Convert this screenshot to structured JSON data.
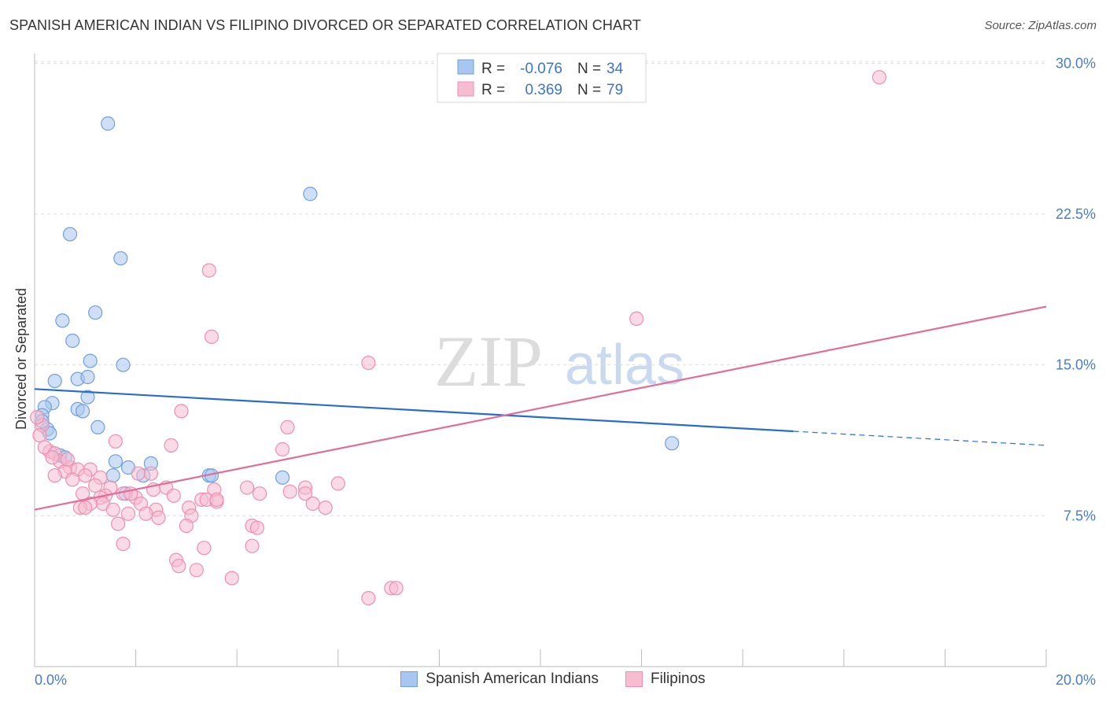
{
  "title": "SPANISH AMERICAN INDIAN VS FILIPINO DIVORCED OR SEPARATED CORRELATION CHART",
  "source": "Source: ZipAtlas.com",
  "watermark": {
    "zip": "ZIP",
    "atlas": "atlas"
  },
  "legend": {
    "rows": [
      {
        "r_label": "R =",
        "r_value": "-0.076",
        "n_label": "N =",
        "n_value": "34"
      },
      {
        "r_label": "R =",
        "r_value": "0.369",
        "n_label": "N =",
        "n_value": "79"
      }
    ]
  },
  "bottom_legend": [
    "Spanish American Indians",
    "Filipinos"
  ],
  "colors": {
    "blue_fill": "#a8c6ef",
    "blue_stroke": "#6f9fe0",
    "blue_line": "#2a6ccc",
    "pink_fill": "#f6bcd0",
    "pink_stroke": "#ee8fb0",
    "pink_line": "#e06e98",
    "tick_text": "#4a7cc7",
    "grid": "#dddddd"
  },
  "chart_data": {
    "type": "scatter",
    "title": "SPANISH AMERICAN INDIAN VS FILIPINO DIVORCED OR SEPARATED CORRELATION CHART",
    "xlabel": "",
    "ylabel": "Divorced or Separated",
    "xlim": [
      0,
      20
    ],
    "ylim": [
      0,
      31
    ],
    "x_tick_labels": [
      "0.0%",
      "20.0%"
    ],
    "y_ticks": [
      7.5,
      15.0,
      22.5,
      30.0
    ],
    "y_tick_labels": [
      "7.5%",
      "15.0%",
      "22.5%",
      "30.0%"
    ],
    "grid": "horizontal dashed",
    "legend_position": "top-center",
    "series": [
      {
        "name": "Spanish American Indians",
        "color": "blue",
        "r": -0.076,
        "n": 34,
        "trend": {
          "x": [
            0,
            15
          ],
          "y": [
            13.8,
            11.7
          ],
          "dashed_to": [
            20,
            11.0
          ]
        },
        "points": [
          [
            1.45,
            27.0
          ],
          [
            5.45,
            23.5
          ],
          [
            0.7,
            21.5
          ],
          [
            1.7,
            20.3
          ],
          [
            1.2,
            17.6
          ],
          [
            0.55,
            17.2
          ],
          [
            0.75,
            16.2
          ],
          [
            1.1,
            15.2
          ],
          [
            1.75,
            15.0
          ],
          [
            0.85,
            14.3
          ],
          [
            1.05,
            14.4
          ],
          [
            0.4,
            14.2
          ],
          [
            1.05,
            13.4
          ],
          [
            0.35,
            13.1
          ],
          [
            0.2,
            12.9
          ],
          [
            0.85,
            12.8
          ],
          [
            0.95,
            12.7
          ],
          [
            0.15,
            12.5
          ],
          [
            1.25,
            11.9
          ],
          [
            0.25,
            11.8
          ],
          [
            0.3,
            11.6
          ],
          [
            0.5,
            10.5
          ],
          [
            0.6,
            10.4
          ],
          [
            1.6,
            10.2
          ],
          [
            2.3,
            10.1
          ],
          [
            1.85,
            9.9
          ],
          [
            1.55,
            9.5
          ],
          [
            2.15,
            9.5
          ],
          [
            3.45,
            9.5
          ],
          [
            3.5,
            9.5
          ],
          [
            4.9,
            9.4
          ],
          [
            1.8,
            8.6
          ],
          [
            12.6,
            11.1
          ],
          [
            0.15,
            12.2
          ]
        ]
      },
      {
        "name": "Filipinos",
        "color": "pink",
        "r": 0.369,
        "n": 79,
        "trend": {
          "x": [
            0,
            20
          ],
          "y": [
            7.8,
            17.9
          ]
        },
        "points": [
          [
            16.7,
            29.3
          ],
          [
            3.45,
            19.7
          ],
          [
            11.9,
            17.3
          ],
          [
            3.5,
            16.4
          ],
          [
            6.6,
            15.1
          ],
          [
            2.9,
            12.7
          ],
          [
            5.0,
            11.9
          ],
          [
            0.15,
            12.0
          ],
          [
            0.05,
            12.4
          ],
          [
            1.6,
            11.2
          ],
          [
            2.7,
            11.0
          ],
          [
            4.9,
            10.8
          ],
          [
            0.3,
            10.7
          ],
          [
            0.2,
            10.9
          ],
          [
            0.4,
            10.6
          ],
          [
            0.5,
            10.2
          ],
          [
            0.35,
            10.4
          ],
          [
            0.7,
            9.9
          ],
          [
            0.85,
            9.8
          ],
          [
            1.1,
            9.8
          ],
          [
            0.6,
            9.7
          ],
          [
            0.4,
            9.5
          ],
          [
            0.75,
            9.3
          ],
          [
            1.0,
            9.5
          ],
          [
            1.3,
            9.4
          ],
          [
            2.05,
            9.6
          ],
          [
            2.3,
            9.6
          ],
          [
            6.0,
            9.1
          ],
          [
            1.2,
            9.0
          ],
          [
            1.5,
            8.9
          ],
          [
            2.6,
            8.9
          ],
          [
            3.55,
            8.8
          ],
          [
            4.2,
            8.9
          ],
          [
            5.35,
            8.9
          ],
          [
            5.05,
            8.7
          ],
          [
            0.95,
            8.6
          ],
          [
            1.75,
            8.6
          ],
          [
            2.75,
            8.5
          ],
          [
            4.45,
            8.6
          ],
          [
            5.35,
            8.6
          ],
          [
            1.4,
            8.5
          ],
          [
            1.3,
            8.4
          ],
          [
            2.0,
            8.4
          ],
          [
            1.35,
            8.1
          ],
          [
            3.3,
            8.3
          ],
          [
            3.4,
            8.3
          ],
          [
            3.6,
            8.2
          ],
          [
            1.1,
            8.1
          ],
          [
            2.1,
            8.1
          ],
          [
            5.5,
            8.1
          ],
          [
            0.9,
            7.9
          ],
          [
            2.4,
            7.8
          ],
          [
            3.05,
            7.9
          ],
          [
            5.75,
            7.9
          ],
          [
            1.55,
            7.8
          ],
          [
            2.2,
            7.6
          ],
          [
            1.85,
            7.6
          ],
          [
            2.45,
            7.4
          ],
          [
            3.1,
            7.5
          ],
          [
            1.65,
            7.1
          ],
          [
            3.0,
            7.0
          ],
          [
            4.3,
            7.0
          ],
          [
            4.4,
            6.9
          ],
          [
            3.35,
            5.9
          ],
          [
            1.75,
            6.1
          ],
          [
            4.3,
            6.0
          ],
          [
            2.8,
            5.3
          ],
          [
            2.85,
            5.0
          ],
          [
            3.2,
            4.8
          ],
          [
            3.9,
            4.4
          ],
          [
            7.05,
            3.9
          ],
          [
            7.15,
            3.9
          ],
          [
            6.6,
            3.4
          ],
          [
            2.35,
            8.8
          ],
          [
            1.9,
            8.6
          ],
          [
            0.65,
            10.3
          ],
          [
            0.1,
            11.5
          ],
          [
            1.0,
            7.9
          ],
          [
            3.6,
            8.3
          ]
        ]
      }
    ]
  }
}
